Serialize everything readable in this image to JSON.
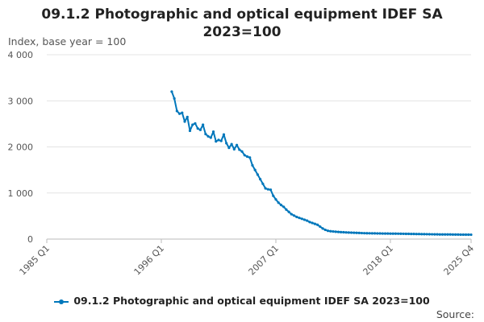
{
  "chart_data": {
    "type": "line",
    "title_lines": [
      "09.1.2 Photographic and optical equipment IDEF SA",
      "2023=100"
    ],
    "ylabel": "Index, base year = 100",
    "ylim": [
      0,
      4000
    ],
    "yticks": [
      0,
      1000,
      2000,
      3000,
      4000
    ],
    "ytick_labels": [
      "0",
      "1 000",
      "2 000",
      "3 000",
      "4 000"
    ],
    "x_range": [
      "1985 Q1",
      "2025 Q4"
    ],
    "xticks": [
      {
        "label": "1985 Q1",
        "value": "1985 Q1"
      },
      {
        "label": "1996 Q1",
        "value": "1996 Q1"
      },
      {
        "label": "2007 Q1",
        "value": "2007 Q1"
      },
      {
        "label": "2018 Q1",
        "value": "2018 Q1"
      },
      {
        "label": "2025 Q4",
        "value": "2025 Q4"
      }
    ],
    "grid": "horizontal",
    "legend_position": "bottom",
    "series": [
      {
        "name": "09.1.2 Photographic and optical equipment IDEF SA 2023=100",
        "color": "#0077bb",
        "points": [
          [
            "1997 Q1",
            3200
          ],
          [
            "1997 Q2",
            3050
          ],
          [
            "1997 Q3",
            2780
          ],
          [
            "1997 Q4",
            2720
          ],
          [
            "1998 Q1",
            2740
          ],
          [
            "1998 Q2",
            2550
          ],
          [
            "1998 Q3",
            2650
          ],
          [
            "1998 Q4",
            2350
          ],
          [
            "1999 Q1",
            2480
          ],
          [
            "1999 Q2",
            2510
          ],
          [
            "1999 Q3",
            2400
          ],
          [
            "1999 Q4",
            2370
          ],
          [
            "2000 Q1",
            2480
          ],
          [
            "2000 Q2",
            2280
          ],
          [
            "2000 Q3",
            2230
          ],
          [
            "2000 Q4",
            2200
          ],
          [
            "2001 Q1",
            2330
          ],
          [
            "2001 Q2",
            2120
          ],
          [
            "2001 Q3",
            2150
          ],
          [
            "2001 Q4",
            2130
          ],
          [
            "2002 Q1",
            2270
          ],
          [
            "2002 Q2",
            2080
          ],
          [
            "2002 Q3",
            1980
          ],
          [
            "2002 Q4",
            2060
          ],
          [
            "2003 Q1",
            1950
          ],
          [
            "2003 Q2",
            2040
          ],
          [
            "2003 Q3",
            1940
          ],
          [
            "2003 Q4",
            1900
          ],
          [
            "2004 Q1",
            1820
          ],
          [
            "2004 Q2",
            1790
          ],
          [
            "2004 Q3",
            1770
          ],
          [
            "2004 Q4",
            1600
          ],
          [
            "2005 Q1",
            1500
          ],
          [
            "2005 Q2",
            1400
          ],
          [
            "2005 Q3",
            1300
          ],
          [
            "2005 Q4",
            1200
          ],
          [
            "2006 Q1",
            1100
          ],
          [
            "2006 Q2",
            1080
          ],
          [
            "2006 Q3",
            1070
          ],
          [
            "2006 Q4",
            940
          ],
          [
            "2007 Q1",
            860
          ],
          [
            "2007 Q2",
            790
          ],
          [
            "2007 Q3",
            740
          ],
          [
            "2007 Q4",
            700
          ],
          [
            "2008 Q1",
            640
          ],
          [
            "2008 Q2",
            590
          ],
          [
            "2008 Q3",
            540
          ],
          [
            "2008 Q4",
            510
          ],
          [
            "2009 Q1",
            480
          ],
          [
            "2009 Q2",
            460
          ],
          [
            "2009 Q3",
            440
          ],
          [
            "2009 Q4",
            420
          ],
          [
            "2010 Q1",
            400
          ],
          [
            "2010 Q2",
            370
          ],
          [
            "2010 Q3",
            350
          ],
          [
            "2010 Q4",
            330
          ],
          [
            "2011 Q1",
            310
          ],
          [
            "2011 Q2",
            270
          ],
          [
            "2011 Q3",
            230
          ],
          [
            "2011 Q4",
            200
          ],
          [
            "2012 Q1",
            180
          ],
          [
            "2012 Q2",
            170
          ],
          [
            "2012 Q3",
            165
          ],
          [
            "2012 Q4",
            160
          ],
          [
            "2013 Q1",
            155
          ],
          [
            "2013 Q2",
            150
          ],
          [
            "2013 Q3",
            148
          ],
          [
            "2013 Q4",
            145
          ],
          [
            "2014 Q1",
            142
          ],
          [
            "2014 Q2",
            140
          ],
          [
            "2014 Q3",
            138
          ],
          [
            "2014 Q4",
            135
          ],
          [
            "2015 Q1",
            133
          ],
          [
            "2015 Q2",
            130
          ],
          [
            "2015 Q3",
            128
          ],
          [
            "2015 Q4",
            127
          ],
          [
            "2016 Q1",
            126
          ],
          [
            "2016 Q2",
            125
          ],
          [
            "2016 Q3",
            124
          ],
          [
            "2016 Q4",
            123
          ],
          [
            "2017 Q1",
            122
          ],
          [
            "2017 Q2",
            121
          ],
          [
            "2017 Q3",
            120
          ],
          [
            "2017 Q4",
            120
          ],
          [
            "2018 Q1",
            119
          ],
          [
            "2018 Q2",
            118
          ],
          [
            "2018 Q3",
            118
          ],
          [
            "2018 Q4",
            117
          ],
          [
            "2019 Q1",
            116
          ],
          [
            "2019 Q2",
            115
          ],
          [
            "2019 Q3",
            114
          ],
          [
            "2019 Q4",
            113
          ],
          [
            "2020 Q1",
            112
          ],
          [
            "2020 Q2",
            111
          ],
          [
            "2020 Q3",
            110
          ],
          [
            "2020 Q4",
            110
          ],
          [
            "2021 Q1",
            108
          ],
          [
            "2021 Q2",
            107
          ],
          [
            "2021 Q3",
            106
          ],
          [
            "2021 Q4",
            105
          ],
          [
            "2022 Q1",
            104
          ],
          [
            "2022 Q2",
            103
          ],
          [
            "2022 Q3",
            102
          ],
          [
            "2022 Q4",
            101
          ],
          [
            "2023 Q1",
            100
          ],
          [
            "2023 Q2",
            100
          ],
          [
            "2023 Q3",
            100
          ],
          [
            "2023 Q4",
            100
          ],
          [
            "2024 Q1",
            99
          ],
          [
            "2024 Q2",
            98
          ],
          [
            "2024 Q3",
            98
          ],
          [
            "2024 Q4",
            97
          ],
          [
            "2025 Q1",
            97
          ],
          [
            "2025 Q2",
            96
          ],
          [
            "2025 Q3",
            96
          ],
          [
            "2025 Q4",
            95
          ]
        ]
      }
    ]
  },
  "source_label": "Source:"
}
